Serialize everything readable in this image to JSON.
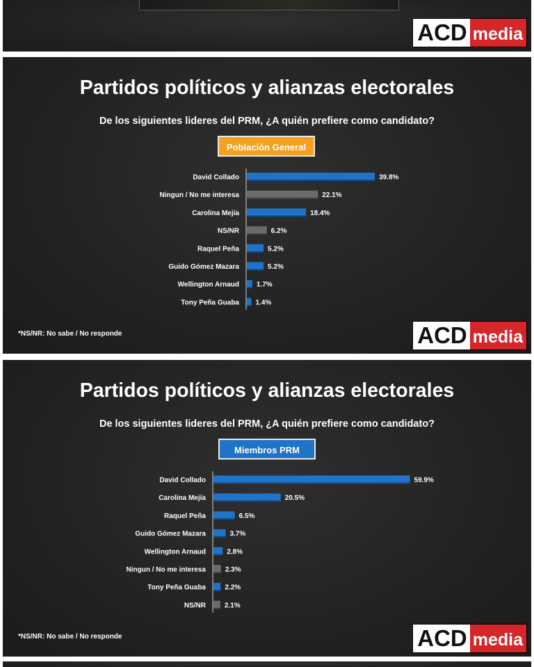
{
  "logo": {
    "acd": "ACD",
    "media": "media"
  },
  "colors": {
    "bar_blue": "#1f74c8",
    "bar_gray": "#6b6b6b",
    "badge_orange": "#f5a020",
    "badge_blue": "#1f74c8",
    "logo_red": "#d5262a"
  },
  "chart_data": [
    {
      "type": "bar",
      "orientation": "horizontal",
      "title": "Partidos políticos y alianzas electorales",
      "subtitle": "De los siguientes lideres del PRM, ¿A quién prefiere como candidato?",
      "badge": "Población General",
      "footnote": "*NS/NR: No sabe / No responde",
      "categories": [
        "David Collado",
        "Ningun / No me interesa",
        "Carolina Mejía",
        "NS/NR",
        "Raquel Peña",
        "Guido Gómez Mazara",
        "Wellington Arnaud",
        "Tony Peña Guaba"
      ],
      "values": [
        39.8,
        22.1,
        18.4,
        6.2,
        5.2,
        5.2,
        1.7,
        1.4
      ],
      "value_labels": [
        "39.8%",
        "22.1%",
        "18.4%",
        "6.2%",
        "5.2%",
        "5.2%",
        "1.7%",
        "1.4%"
      ],
      "bar_colors": [
        "blue",
        "gray",
        "blue",
        "gray",
        "blue",
        "blue",
        "blue",
        "blue"
      ],
      "xlim": [
        0,
        40
      ]
    },
    {
      "type": "bar",
      "orientation": "horizontal",
      "title": "Partidos políticos y alianzas electorales",
      "subtitle": "De los siguientes lideres del PRM, ¿A quién prefiere como candidato?",
      "badge": "Miembros PRM",
      "footnote": "*NS/NR: No sabe / No responde",
      "categories": [
        "David Collado",
        "Carolina Mejía",
        "Raquel Peña",
        "Guido Gómez Mazara",
        "Wellington Arnaud",
        "Ningun / No me interesa",
        "Tony Peña Guaba",
        "NS/NR"
      ],
      "values": [
        59.9,
        20.5,
        6.5,
        3.7,
        2.8,
        2.3,
        2.2,
        2.1
      ],
      "value_labels": [
        "59.9%",
        "20.5%",
        "6.5%",
        "3.7%",
        "2.8%",
        "2.3%",
        "2.2%",
        "2.1%"
      ],
      "bar_colors": [
        "blue",
        "blue",
        "blue",
        "blue",
        "blue",
        "gray",
        "blue",
        "gray"
      ],
      "xlim": [
        0,
        60
      ]
    }
  ]
}
